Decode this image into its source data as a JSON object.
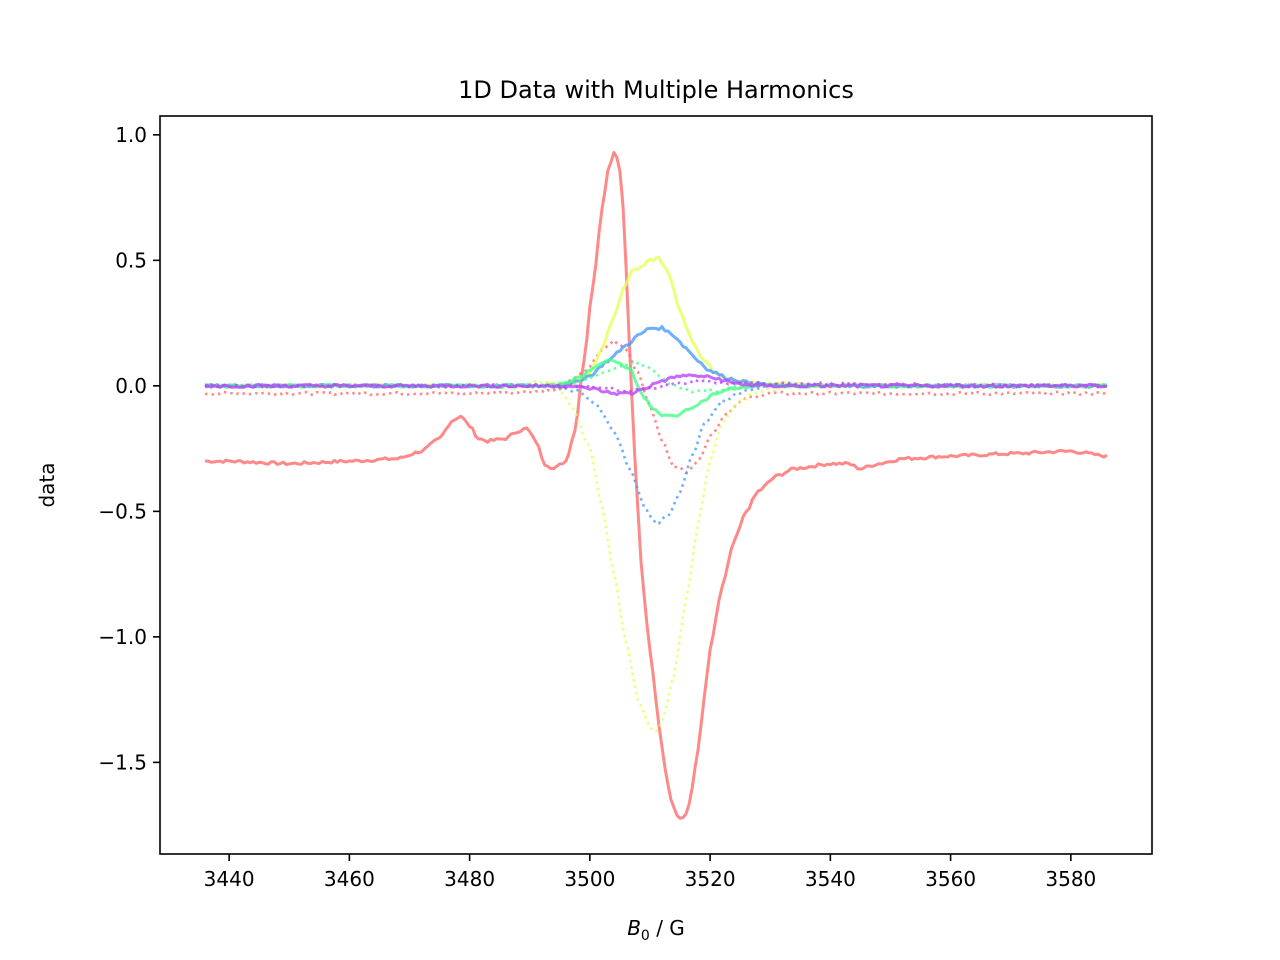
{
  "chart_data": {
    "type": "line",
    "title": "1D Data with Multiple Harmonics",
    "xlabel_main": "B",
    "xlabel_sub": "0",
    "xlabel_rest": " / G",
    "ylabel": "data",
    "xlim": [
      3428.5,
      3593.5
    ],
    "ylim": [
      -1.865,
      1.075
    ],
    "xticks": [
      3440,
      3460,
      3480,
      3500,
      3520,
      3540,
      3560,
      3580
    ],
    "yticks": [
      1.0,
      0.5,
      0.0,
      -0.5,
      -1.0,
      -1.5
    ],
    "ytick_labels": [
      "1.0",
      "0.5",
      "0.0",
      "−0.5",
      "−1.0",
      "−1.5"
    ],
    "xtick_labels": [
      "3440",
      "3460",
      "3480",
      "3500",
      "3520",
      "3540",
      "3560",
      "3580"
    ],
    "series": [
      {
        "color": "#ff6b6b",
        "style": "solid",
        "x": [
          3436,
          3440,
          3450,
          3460,
          3468,
          3472,
          3475,
          3477,
          3478.5,
          3480,
          3481.5,
          3483,
          3486,
          3488,
          3489.5,
          3491,
          3492.5,
          3494,
          3496,
          3497.5,
          3499,
          3500.5,
          3502,
          3503,
          3504,
          3504.8,
          3505.6,
          3506.5,
          3507.5,
          3508.5,
          3509.5,
          3510.5,
          3511.5,
          3512.5,
          3513.5,
          3514.5,
          3515.3,
          3516.2,
          3517,
          3518,
          3519,
          3520,
          3522,
          3524,
          3526,
          3528,
          3531,
          3534,
          3540,
          3543,
          3545,
          3548,
          3552,
          3560,
          3570,
          3580,
          3586
        ],
        "y": [
          -0.3,
          -0.3,
          -0.31,
          -0.3,
          -0.29,
          -0.26,
          -0.21,
          -0.14,
          -0.12,
          -0.16,
          -0.21,
          -0.22,
          -0.21,
          -0.18,
          -0.17,
          -0.22,
          -0.31,
          -0.33,
          -0.3,
          -0.18,
          0.1,
          0.4,
          0.7,
          0.86,
          0.93,
          0.9,
          0.7,
          0.2,
          -0.3,
          -0.7,
          -0.95,
          -1.15,
          -1.35,
          -1.52,
          -1.65,
          -1.71,
          -1.73,
          -1.7,
          -1.6,
          -1.45,
          -1.25,
          -1.05,
          -0.8,
          -0.62,
          -0.5,
          -0.42,
          -0.36,
          -0.33,
          -0.31,
          -0.31,
          -0.33,
          -0.31,
          -0.29,
          -0.28,
          -0.27,
          -0.26,
          -0.28
        ]
      },
      {
        "color": "#ff6b6b",
        "style": "dotted",
        "x": [
          3436,
          3480,
          3494,
          3499,
          3502,
          3504,
          3506,
          3508,
          3510,
          3512,
          3514,
          3516,
          3518,
          3520,
          3523,
          3526,
          3530,
          3540,
          3586
        ],
        "y": [
          -0.03,
          -0.03,
          -0.02,
          0.05,
          0.14,
          0.18,
          0.15,
          0.05,
          -0.08,
          -0.22,
          -0.32,
          -0.34,
          -0.3,
          -0.2,
          -0.1,
          -0.05,
          -0.03,
          -0.03,
          -0.03
        ]
      },
      {
        "color": "#e6ff5a",
        "style": "solid",
        "x": [
          3436,
          3490,
          3497,
          3500,
          3502,
          3504,
          3505.5,
          3507,
          3508.5,
          3510,
          3511.5,
          3513,
          3515,
          3517,
          3519,
          3521,
          3524,
          3528,
          3540,
          3586
        ],
        "y": [
          0.0,
          0.0,
          0.01,
          0.05,
          0.15,
          0.28,
          0.38,
          0.46,
          0.47,
          0.5,
          0.51,
          0.45,
          0.3,
          0.18,
          0.1,
          0.05,
          0.02,
          0.01,
          0.0,
          0.0
        ]
      },
      {
        "color": "#e6ff5a",
        "style": "dotted",
        "x": [
          3436,
          3488,
          3491,
          3494,
          3497,
          3500,
          3502,
          3504,
          3506,
          3508,
          3510,
          3511,
          3512,
          3514,
          3516,
          3518,
          3520,
          3522,
          3525,
          3528,
          3535,
          3586
        ],
        "y": [
          0.0,
          0.0,
          0.02,
          0.01,
          -0.08,
          -0.25,
          -0.48,
          -0.75,
          -1.02,
          -1.25,
          -1.36,
          -1.38,
          -1.34,
          -1.15,
          -0.85,
          -0.55,
          -0.3,
          -0.15,
          -0.06,
          -0.02,
          0.0,
          0.0
        ]
      },
      {
        "color": "#4a9bff",
        "style": "solid",
        "x": [
          3436,
          3492,
          3497,
          3500,
          3503,
          3506,
          3508,
          3510,
          3512,
          3514,
          3516,
          3518,
          3520,
          3523,
          3527,
          3532,
          3586
        ],
        "y": [
          0.0,
          0.0,
          0.01,
          0.04,
          0.1,
          0.16,
          0.2,
          0.23,
          0.23,
          0.2,
          0.15,
          0.1,
          0.06,
          0.03,
          0.01,
          0.0,
          0.0
        ]
      },
      {
        "color": "#4a9bff",
        "style": "dotted",
        "x": [
          3436,
          3494,
          3498,
          3501,
          3504,
          3507,
          3509,
          3511,
          3513,
          3515,
          3517,
          3519,
          3522,
          3526,
          3530,
          3586
        ],
        "y": [
          0.0,
          0.0,
          -0.02,
          -0.07,
          -0.18,
          -0.35,
          -0.48,
          -0.55,
          -0.52,
          -0.42,
          -0.28,
          -0.15,
          -0.06,
          -0.02,
          0.0,
          0.0
        ]
      },
      {
        "color": "#44ff88",
        "style": "solid",
        "x": [
          3436,
          3494,
          3498,
          3501,
          3503,
          3505,
          3507,
          3508,
          3509,
          3510.5,
          3512,
          3514,
          3516,
          3518,
          3521,
          3524,
          3528,
          3586
        ],
        "y": [
          0.0,
          0.0,
          0.03,
          0.08,
          0.1,
          0.09,
          0.06,
          0.0,
          -0.05,
          -0.09,
          -0.12,
          -0.12,
          -0.1,
          -0.07,
          -0.03,
          -0.01,
          0.0,
          0.0
        ]
      },
      {
        "color": "#44ff88",
        "style": "dotted",
        "x": [
          3436,
          3496,
          3500,
          3503,
          3506,
          3508,
          3510,
          3512,
          3514,
          3517,
          3521,
          3525,
          3586
        ],
        "y": [
          0.0,
          0.0,
          0.03,
          0.06,
          0.08,
          0.09,
          0.07,
          0.03,
          0.0,
          -0.02,
          -0.02,
          0.0,
          0.0
        ]
      },
      {
        "color": "#bb44ff",
        "style": "solid",
        "x": [
          3436,
          3496,
          3500,
          3504,
          3507,
          3509,
          3512,
          3515,
          3518,
          3521,
          3524,
          3528,
          3586
        ],
        "y": [
          0.0,
          0.0,
          -0.01,
          -0.03,
          -0.03,
          -0.01,
          0.02,
          0.04,
          0.04,
          0.03,
          0.01,
          0.0,
          0.0
        ]
      },
      {
        "color": "#bb44ff",
        "style": "dotted",
        "x": [
          3436,
          3498,
          3503,
          3507,
          3510,
          3514,
          3518,
          3522,
          3586
        ],
        "y": [
          0.0,
          0.0,
          -0.01,
          -0.02,
          -0.01,
          0.01,
          0.02,
          0.01,
          0.0
        ]
      }
    ]
  }
}
